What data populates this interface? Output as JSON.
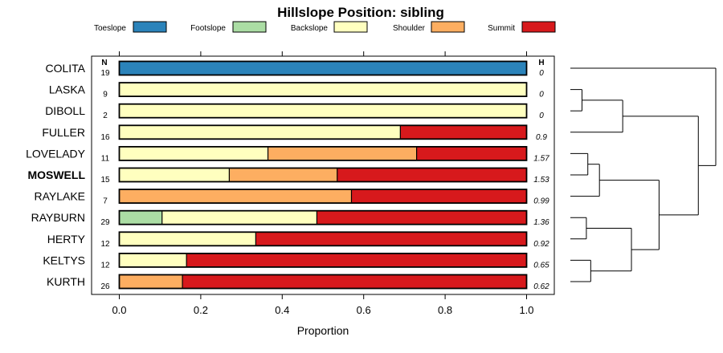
{
  "chart_data": {
    "type": "bar",
    "subtype": "stacked-horizontal-proportion",
    "title": "Hillslope Position: sibling",
    "xlabel": "Proportion",
    "xlim": [
      0,
      1
    ],
    "xticks": [
      "0.0",
      "0.2",
      "0.4",
      "0.6",
      "0.8",
      "1.0"
    ],
    "xtick_values": [
      0,
      0.2,
      0.4,
      0.6,
      0.8,
      1.0
    ],
    "n_header": "N",
    "h_header": "H",
    "legend": [
      {
        "name": "Toeslope",
        "color": "#2b83ba"
      },
      {
        "name": "Footslope",
        "color": "#abdda4"
      },
      {
        "name": "Backslope",
        "color": "#ffffbf"
      },
      {
        "name": "Shoulder",
        "color": "#fdae61"
      },
      {
        "name": "Summit",
        "color": "#d7191c"
      }
    ],
    "rows": [
      {
        "label": "COLITA",
        "n": "19",
        "h": "0",
        "bold": false,
        "values": [
          1.0,
          0,
          0,
          0,
          0
        ]
      },
      {
        "label": "LASKA",
        "n": "9",
        "h": "0",
        "bold": false,
        "values": [
          0,
          0,
          1.0,
          0,
          0
        ]
      },
      {
        "label": "DIBOLL",
        "n": "2",
        "h": "0",
        "bold": false,
        "values": [
          0,
          0,
          1.0,
          0,
          0
        ]
      },
      {
        "label": "FULLER",
        "n": "16",
        "h": "0.9",
        "bold": false,
        "values": [
          0,
          0,
          0.69,
          0,
          0.31
        ]
      },
      {
        "label": "LOVELADY",
        "n": "11",
        "h": "1.57",
        "bold": false,
        "values": [
          0,
          0,
          0.365,
          0.365,
          0.27
        ]
      },
      {
        "label": "MOSWELL",
        "n": "15",
        "h": "1.53",
        "bold": true,
        "values": [
          0,
          0,
          0.27,
          0.265,
          0.465
        ]
      },
      {
        "label": "RAYLAKE",
        "n": "7",
        "h": "0.99",
        "bold": false,
        "values": [
          0,
          0,
          0,
          0.57,
          0.43
        ]
      },
      {
        "label": "RAYBURN",
        "n": "29",
        "h": "1.36",
        "bold": false,
        "values": [
          0,
          0.105,
          0.38,
          0,
          0.515
        ]
      },
      {
        "label": "HERTY",
        "n": "12",
        "h": "0.92",
        "bold": false,
        "values": [
          0,
          0,
          0.335,
          0,
          0.665
        ]
      },
      {
        "label": "KELTYS",
        "n": "12",
        "h": "0.65",
        "bold": false,
        "values": [
          0,
          0,
          0.165,
          0,
          0.835
        ]
      },
      {
        "label": "KURTH",
        "n": "26",
        "h": "0.62",
        "bold": false,
        "values": [
          0,
          0,
          0,
          0.155,
          0.845
        ]
      }
    ],
    "dendrogram": {
      "merges": [
        {
          "left": 1,
          "right": 2,
          "height": 0.08
        },
        {
          "left": 4,
          "right": 5,
          "height": 0.12
        },
        {
          "left": 9,
          "right": 10,
          "height": 0.14
        },
        {
          "left": 7,
          "right": 8,
          "height": 0.11
        },
        {
          "left": -1,
          "right": 3,
          "height": 0.36
        },
        {
          "left": -2,
          "right": 6,
          "height": 0.2
        },
        {
          "left": -4,
          "right": -3,
          "height": 0.42
        },
        {
          "left": -6,
          "right": -7,
          "height": 0.61
        },
        {
          "left": -5,
          "right": -8,
          "height": 0.88
        },
        {
          "left": 0,
          "right": -9,
          "height": 1.0
        }
      ]
    }
  }
}
